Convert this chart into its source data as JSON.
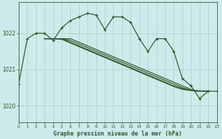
{
  "background_color": "#ceeaea",
  "grid_color": "#aacccc",
  "line_color": "#2d5a2d",
  "title": "Graphe pression niveau de la mer (hPa)",
  "xlim": [
    0,
    23
  ],
  "ylim": [
    1019.55,
    1022.85
  ],
  "yticks": [
    1020,
    1021,
    1022
  ],
  "xtick_labels": [
    "0",
    "1",
    "2",
    "3",
    "4",
    "5",
    "6",
    "7",
    "8",
    "9",
    "10",
    "11",
    "12",
    "13",
    "14",
    "15",
    "16",
    "17",
    "18",
    "19",
    "20",
    "21",
    "22",
    "23"
  ],
  "main_series": [
    1020.6,
    1021.85,
    1022.0,
    1022.0,
    1021.8,
    1022.15,
    1022.35,
    1022.45,
    1022.55,
    1022.5,
    1022.1,
    1022.45,
    1022.45,
    1022.3,
    1021.85,
    1021.5,
    1021.85,
    1021.85,
    1021.5,
    1020.75,
    1020.55,
    1020.2,
    1020.4,
    1020.4
  ],
  "diag_series": [
    [
      1021.85,
      1021.85,
      1021.85,
      1021.85,
      1021.75,
      1021.65,
      1021.55,
      1021.45,
      1021.35,
      1021.25,
      1021.15,
      1021.05,
      1020.95,
      1020.85,
      1020.75,
      1020.65,
      1020.55,
      1020.45,
      1020.4,
      1020.4
    ],
    [
      1021.85,
      1021.85,
      1021.85,
      1021.8,
      1021.7,
      1021.6,
      1021.5,
      1021.4,
      1021.3,
      1021.2,
      1021.1,
      1021.0,
      1020.9,
      1020.8,
      1020.7,
      1020.6,
      1020.5,
      1020.42,
      1020.4,
      1020.4
    ],
    [
      1021.85,
      1021.85,
      1021.85,
      1021.75,
      1021.65,
      1021.55,
      1021.45,
      1021.35,
      1021.25,
      1021.15,
      1021.05,
      1020.95,
      1020.85,
      1020.75,
      1020.65,
      1020.55,
      1020.47,
      1020.42,
      1020.4,
      1020.4
    ],
    [
      1021.85,
      1021.85,
      1021.83,
      1021.73,
      1021.63,
      1021.53,
      1021.43,
      1021.33,
      1021.23,
      1021.13,
      1021.03,
      1020.93,
      1020.83,
      1020.73,
      1020.63,
      1020.53,
      1020.45,
      1020.42,
      1020.4,
      1020.4
    ]
  ],
  "diag_x_start": 3
}
